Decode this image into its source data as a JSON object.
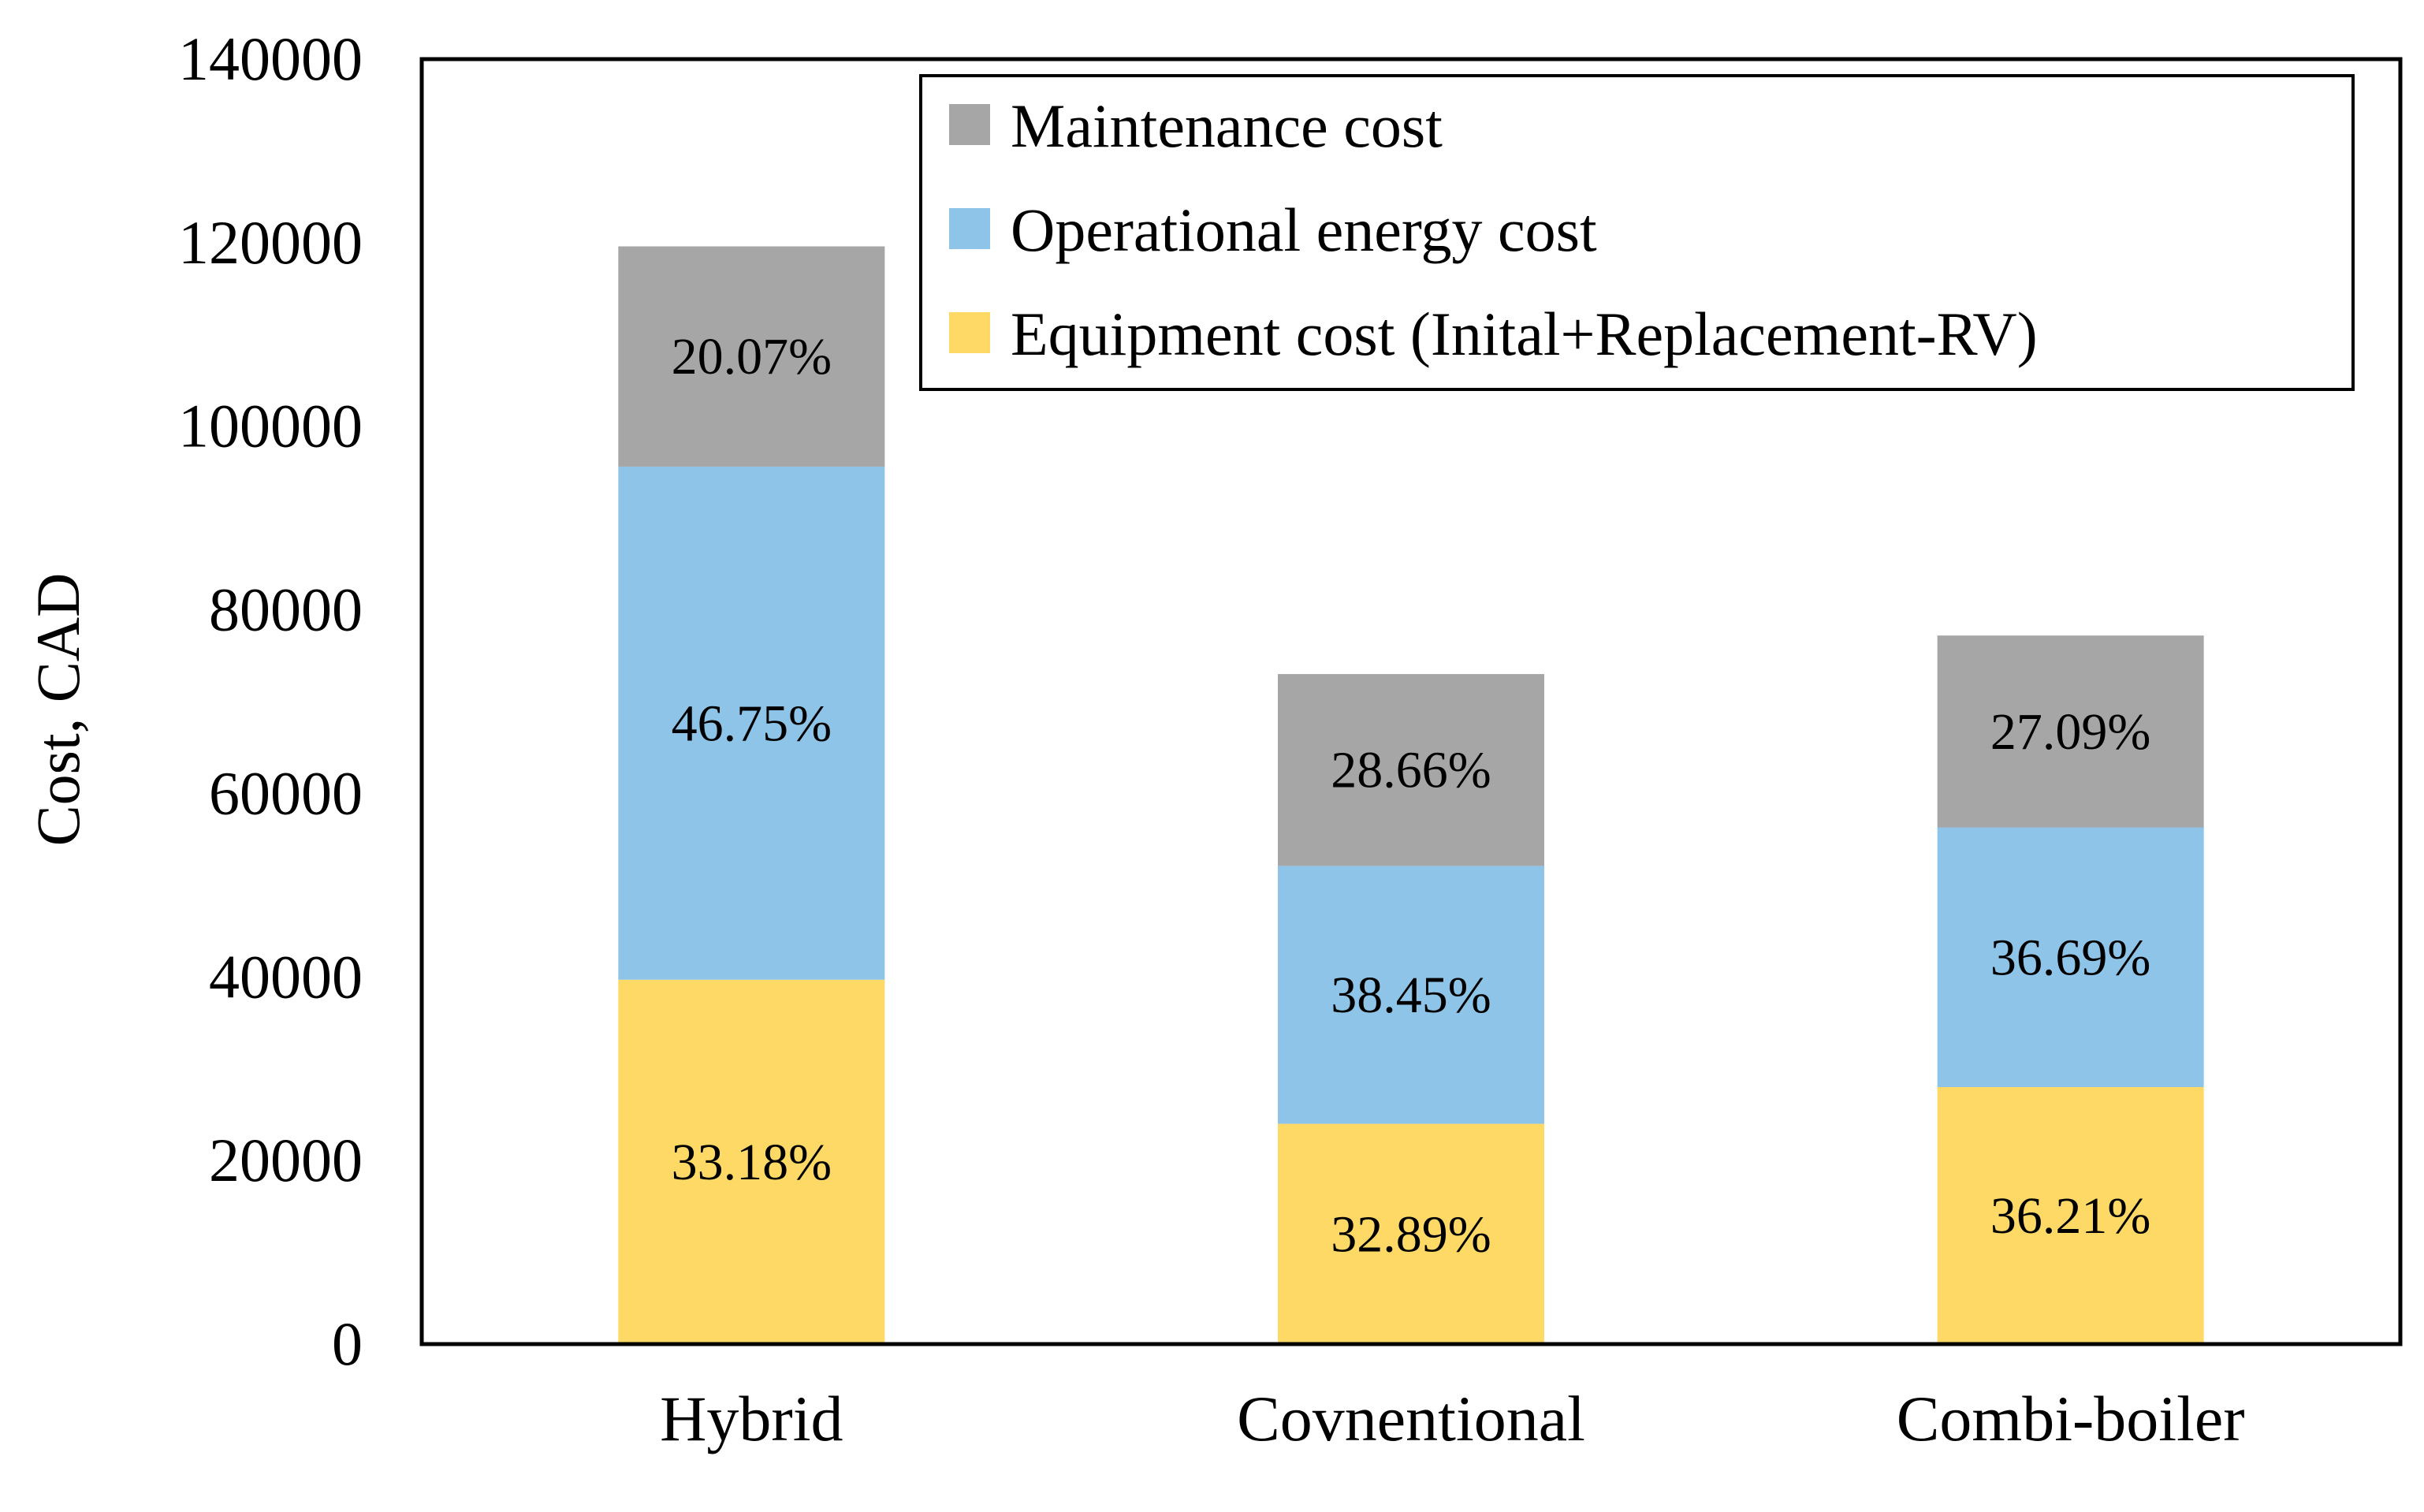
{
  "chart_data": {
    "type": "bar",
    "stacked": true,
    "categories": [
      "Hybrid",
      "Covnentional",
      "Combi-boiler"
    ],
    "series": [
      {
        "name": "Equipment cost (Inital+Replacement-RV)",
        "color": "#FFD966",
        "values": [
          39700,
          24000,
          28000
        ],
        "labels": [
          "33.18%",
          "32.89%",
          "36.21%"
        ]
      },
      {
        "name": "Operational energy cost",
        "color": "#8DC4E8",
        "values": [
          55900,
          28100,
          28300
        ],
        "labels": [
          "46.75%",
          "38.45%",
          "36.69%"
        ]
      },
      {
        "name": "Maintenance cost",
        "color": "#A6A6A6",
        "values": [
          24000,
          20900,
          20900
        ],
        "labels": [
          "20.07%",
          "28.66%",
          "27.09%"
        ]
      }
    ],
    "legend_order": [
      2,
      1,
      0
    ],
    "title": "",
    "xlabel": "",
    "ylabel": "Cost, CAD",
    "ylim": [
      0,
      140000
    ],
    "yticks": [
      0,
      20000,
      40000,
      60000,
      80000,
      100000,
      120000,
      140000
    ],
    "grid": false,
    "legend_position": "top-right"
  }
}
